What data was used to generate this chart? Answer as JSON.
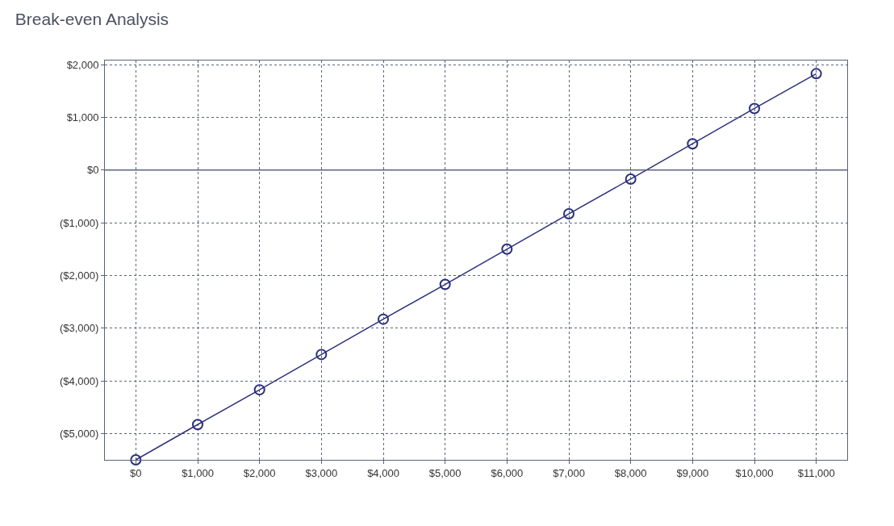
{
  "chart_data": {
    "type": "line",
    "title": "Break-even Analysis",
    "x": [
      0,
      1000,
      2000,
      3000,
      4000,
      5000,
      6000,
      7000,
      8000,
      9000,
      10000,
      11000
    ],
    "series": [
      {
        "color": "#2b2f7a",
        "values": [
          -5500,
          -4830,
          -4170,
          -3500,
          -2830,
          -2170,
          -1500,
          -830,
          -170,
          500,
          1170,
          1830
        ]
      }
    ],
    "xlim": [
      -500,
      11500
    ],
    "xticks": [
      {
        "value": 0,
        "label": "$0"
      },
      {
        "value": 1000,
        "label": "$1,000"
      },
      {
        "value": 2000,
        "label": "$2,000"
      },
      {
        "value": 3000,
        "label": "$3,000"
      },
      {
        "value": 4000,
        "label": "$4,000"
      },
      {
        "value": 5000,
        "label": "$5,000"
      },
      {
        "value": 6000,
        "label": "$6,000"
      },
      {
        "value": 7000,
        "label": "$7,000"
      },
      {
        "value": 8000,
        "label": "$8,000"
      },
      {
        "value": 9000,
        "label": "$9,000"
      },
      {
        "value": 10000,
        "label": "$10,000"
      },
      {
        "value": 11000,
        "label": "$11,000"
      }
    ],
    "ylim": [
      -5500,
      2080
    ],
    "yticks": [
      {
        "value": 2000,
        "label": "$2,000"
      },
      {
        "value": 1000,
        "label": "$1,000"
      },
      {
        "value": 0,
        "label": "$0"
      },
      {
        "value": -1000,
        "label": "($1,000)"
      },
      {
        "value": -2000,
        "label": "($2,000)"
      },
      {
        "value": -3000,
        "label": "($3,000)"
      },
      {
        "value": -4000,
        "label": "($4,000)"
      },
      {
        "value": -5000,
        "label": "($5,000)"
      }
    ],
    "ref_lines": [
      {
        "axis": "y",
        "value": 0,
        "color": "#5a6478"
      }
    ],
    "grid": true,
    "marker": "circle",
    "line_style": "solid",
    "legend": false
  }
}
